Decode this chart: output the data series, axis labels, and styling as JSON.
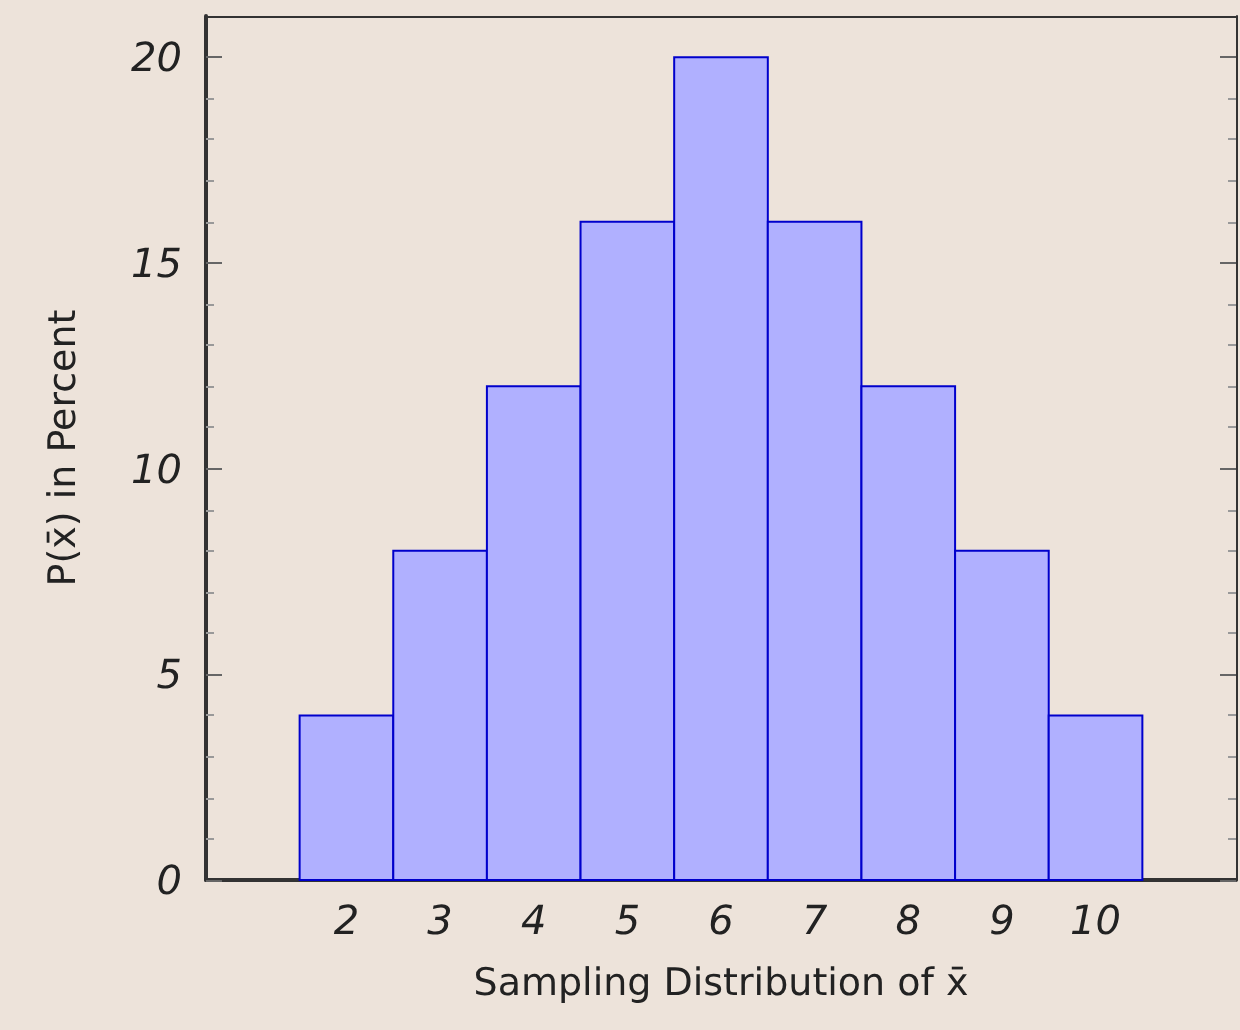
{
  "chart_data": {
    "type": "histogram",
    "xlabel": "Sampling Distribution of x̄",
    "ylabel": "P(x̄) in Percent",
    "bins": [
      1.5,
      2.5,
      3.5,
      4.5,
      5.5,
      6.5,
      7.5,
      8.5,
      9.5,
      10.5
    ],
    "values": [
      4,
      8,
      12,
      16,
      20,
      16,
      12,
      8,
      4
    ],
    "color": "#b0b0ff",
    "xlim": [
      0.5,
      11.5
    ],
    "xticks": [
      2,
      3,
      4,
      5,
      6,
      7,
      8,
      9,
      10
    ],
    "ylim": [
      0,
      21
    ],
    "yticks": [
      0,
      5,
      10,
      15,
      20
    ],
    "grid": false
  }
}
